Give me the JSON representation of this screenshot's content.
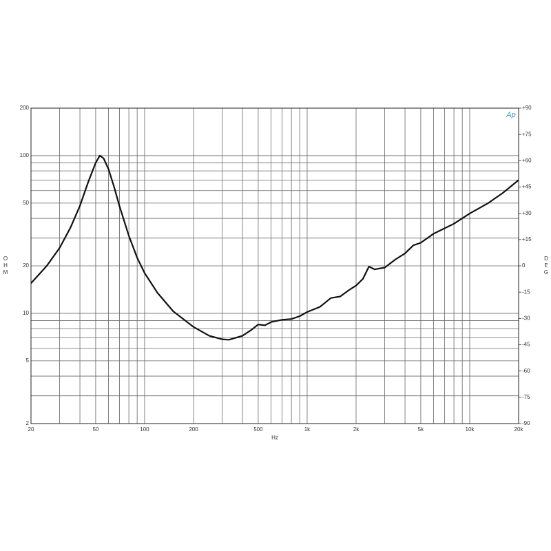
{
  "chart_data": {
    "type": "line",
    "x_label": "Hz",
    "y_label": "OHM",
    "y2_label": "DEG",
    "logo": "Ap",
    "xlog": true,
    "ylog": true,
    "grid": true,
    "xlim": [
      20,
      20000
    ],
    "ylim": [
      2,
      200
    ],
    "y2lim": [
      -90,
      90
    ],
    "xticks": [
      20,
      50,
      100,
      200,
      500,
      {
        "value": 1000,
        "label": "1k"
      },
      {
        "value": 2000,
        "label": "2k"
      },
      {
        "value": 5000,
        "label": "5k"
      },
      {
        "value": 10000,
        "label": "10k"
      },
      {
        "value": 20000,
        "label": "20k"
      }
    ],
    "xminor": [
      30,
      40,
      60,
      70,
      80,
      90,
      300,
      400,
      600,
      700,
      800,
      900,
      3000,
      4000,
      6000,
      7000,
      8000,
      9000
    ],
    "yticks": [
      2,
      5,
      10,
      20,
      50,
      100,
      200
    ],
    "yminor": [
      3,
      4,
      6,
      7,
      8,
      9,
      30,
      40,
      60,
      70,
      80,
      90
    ],
    "y2ticks": [
      {
        "value": 90,
        "label": "+90"
      },
      {
        "value": 75,
        "label": "+75"
      },
      {
        "value": 60,
        "label": "+60"
      },
      {
        "value": 45,
        "label": "+45"
      },
      {
        "value": 30,
        "label": "+30"
      },
      {
        "value": 15,
        "label": "+15"
      },
      0,
      -15,
      -30,
      -45,
      -60,
      -75,
      -90
    ],
    "series": [
      {
        "color": "#111111",
        "x": [
          20,
          25,
          30,
          35,
          40,
          45,
          50,
          53,
          56,
          60,
          65,
          70,
          80,
          90,
          100,
          120,
          150,
          200,
          250,
          300,
          330,
          400,
          450,
          500,
          550,
          600,
          700,
          800,
          900,
          1000,
          1200,
          1400,
          1600,
          1800,
          2000,
          2200,
          2400,
          2600,
          3000,
          3500,
          4000,
          4500,
          5000,
          6000,
          8000,
          10000,
          13000,
          16000,
          20000
        ],
        "values": [
          15.5,
          20,
          26,
          35,
          48,
          68,
          90,
          100,
          96,
          82,
          63,
          48,
          31,
          22.5,
          18,
          13.5,
          10.3,
          8.2,
          7.2,
          6.85,
          6.8,
          7.2,
          7.8,
          8.5,
          8.4,
          8.8,
          9.1,
          9.2,
          9.6,
          10.2,
          11,
          12.5,
          12.8,
          14,
          15,
          16.5,
          19.8,
          19,
          19.5,
          22,
          24,
          27,
          28,
          32,
          37,
          43,
          50,
          58,
          70
        ]
      }
    ]
  }
}
